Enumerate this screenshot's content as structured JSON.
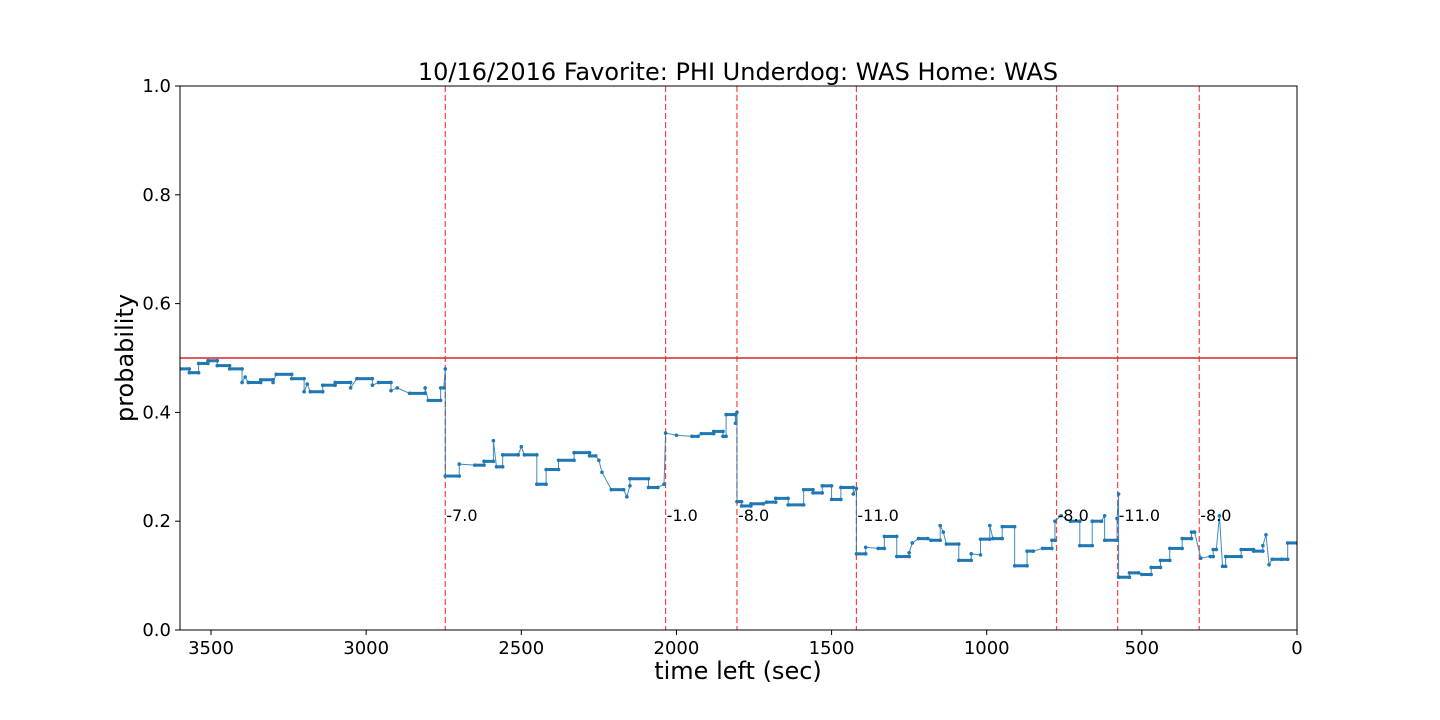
{
  "chart_data": {
    "type": "line",
    "title": "10/16/2016 Favorite: PHI Underdog: WAS Home: WAS",
    "xlabel": "time left (sec)",
    "ylabel": "probability",
    "xlim": [
      3600,
      0
    ],
    "ylim": [
      0,
      1.0
    ],
    "x_ticks": [
      3500,
      3000,
      2500,
      2000,
      1500,
      1000,
      500,
      0
    ],
    "y_ticks": [
      0.0,
      0.2,
      0.4,
      0.6,
      0.8,
      1.0
    ],
    "x_tick_labels": [
      "3500",
      "3000",
      "2500",
      "2000",
      "1500",
      "1000",
      "500",
      "0"
    ],
    "y_tick_labels": [
      "0.0",
      "0.2",
      "0.4",
      "0.6",
      "0.8",
      "1.0"
    ],
    "grid": false,
    "reference_line": {
      "y": 0.5,
      "color": "#d62728"
    },
    "series": [
      {
        "color": "#1f77b4",
        "points": [
          [
            3600,
            0.48
          ],
          [
            3570,
            0.48
          ],
          [
            3570,
            0.473
          ],
          [
            3540,
            0.473
          ],
          [
            3540,
            0.49
          ],
          [
            3510,
            0.49
          ],
          [
            3510,
            0.495
          ],
          [
            3480,
            0.495
          ],
          [
            3480,
            0.486
          ],
          [
            3440,
            0.486
          ],
          [
            3440,
            0.48
          ],
          [
            3400,
            0.48
          ],
          [
            3400,
            0.455
          ],
          [
            3390,
            0.465
          ],
          [
            3380,
            0.455
          ],
          [
            3340,
            0.455
          ],
          [
            3340,
            0.46
          ],
          [
            3300,
            0.46
          ],
          [
            3300,
            0.455
          ],
          [
            3290,
            0.47
          ],
          [
            3240,
            0.47
          ],
          [
            3240,
            0.462
          ],
          [
            3200,
            0.462
          ],
          [
            3200,
            0.438
          ],
          [
            3190,
            0.452
          ],
          [
            3180,
            0.438
          ],
          [
            3140,
            0.438
          ],
          [
            3140,
            0.45
          ],
          [
            3100,
            0.45
          ],
          [
            3100,
            0.455
          ],
          [
            3050,
            0.455
          ],
          [
            3050,
            0.445
          ],
          [
            3030,
            0.462
          ],
          [
            2980,
            0.462
          ],
          [
            2980,
            0.45
          ],
          [
            2960,
            0.455
          ],
          [
            2920,
            0.455
          ],
          [
            2920,
            0.44
          ],
          [
            2900,
            0.445
          ],
          [
            2860,
            0.435
          ],
          [
            2810,
            0.435
          ],
          [
            2810,
            0.445
          ],
          [
            2800,
            0.422
          ],
          [
            2760,
            0.422
          ],
          [
            2760,
            0.445
          ],
          [
            2750,
            0.445
          ],
          [
            2745,
            0.48
          ],
          [
            2745,
            0.283
          ],
          [
            2700,
            0.283
          ],
          [
            2700,
            0.305
          ],
          [
            2650,
            0.303
          ],
          [
            2620,
            0.303
          ],
          [
            2620,
            0.31
          ],
          [
            2590,
            0.31
          ],
          [
            2590,
            0.348
          ],
          [
            2580,
            0.3
          ],
          [
            2560,
            0.3
          ],
          [
            2560,
            0.322
          ],
          [
            2510,
            0.322
          ],
          [
            2500,
            0.337
          ],
          [
            2490,
            0.322
          ],
          [
            2450,
            0.322
          ],
          [
            2450,
            0.268
          ],
          [
            2420,
            0.268
          ],
          [
            2420,
            0.295
          ],
          [
            2380,
            0.295
          ],
          [
            2380,
            0.312
          ],
          [
            2330,
            0.312
          ],
          [
            2330,
            0.326
          ],
          [
            2280,
            0.326
          ],
          [
            2280,
            0.32
          ],
          [
            2260,
            0.32
          ],
          [
            2250,
            0.312
          ],
          [
            2240,
            0.29
          ],
          [
            2210,
            0.258
          ],
          [
            2170,
            0.258
          ],
          [
            2160,
            0.245
          ],
          [
            2150,
            0.265
          ],
          [
            2150,
            0.278
          ],
          [
            2090,
            0.278
          ],
          [
            2090,
            0.262
          ],
          [
            2060,
            0.262
          ],
          [
            2040,
            0.268
          ],
          [
            2035,
            0.362
          ],
          [
            2000,
            0.358
          ],
          [
            1950,
            0.356
          ],
          [
            1930,
            0.356
          ],
          [
            1920,
            0.361
          ],
          [
            1880,
            0.361
          ],
          [
            1880,
            0.365
          ],
          [
            1850,
            0.365
          ],
          [
            1850,
            0.356
          ],
          [
            1840,
            0.356
          ],
          [
            1840,
            0.396
          ],
          [
            1810,
            0.396
          ],
          [
            1810,
            0.38
          ],
          [
            1805,
            0.4
          ],
          [
            1805,
            0.236
          ],
          [
            1790,
            0.236
          ],
          [
            1790,
            0.228
          ],
          [
            1760,
            0.228
          ],
          [
            1760,
            0.232
          ],
          [
            1720,
            0.232
          ],
          [
            1710,
            0.235
          ],
          [
            1680,
            0.235
          ],
          [
            1680,
            0.242
          ],
          [
            1640,
            0.242
          ],
          [
            1640,
            0.23
          ],
          [
            1590,
            0.23
          ],
          [
            1590,
            0.258
          ],
          [
            1560,
            0.258
          ],
          [
            1560,
            0.252
          ],
          [
            1530,
            0.252
          ],
          [
            1530,
            0.265
          ],
          [
            1500,
            0.265
          ],
          [
            1500,
            0.24
          ],
          [
            1470,
            0.24
          ],
          [
            1470,
            0.262
          ],
          [
            1430,
            0.262
          ],
          [
            1430,
            0.25
          ],
          [
            1420,
            0.26
          ],
          [
            1420,
            0.14
          ],
          [
            1390,
            0.14
          ],
          [
            1390,
            0.152
          ],
          [
            1350,
            0.15
          ],
          [
            1330,
            0.15
          ],
          [
            1330,
            0.172
          ],
          [
            1290,
            0.172
          ],
          [
            1290,
            0.135
          ],
          [
            1250,
            0.135
          ],
          [
            1250,
            0.142
          ],
          [
            1240,
            0.16
          ],
          [
            1220,
            0.168
          ],
          [
            1190,
            0.168
          ],
          [
            1180,
            0.165
          ],
          [
            1150,
            0.165
          ],
          [
            1150,
            0.192
          ],
          [
            1140,
            0.18
          ],
          [
            1130,
            0.158
          ],
          [
            1090,
            0.158
          ],
          [
            1090,
            0.128
          ],
          [
            1050,
            0.128
          ],
          [
            1050,
            0.14
          ],
          [
            1020,
            0.138
          ],
          [
            1020,
            0.167
          ],
          [
            990,
            0.167
          ],
          [
            990,
            0.192
          ],
          [
            980,
            0.168
          ],
          [
            950,
            0.168
          ],
          [
            950,
            0.19
          ],
          [
            910,
            0.19
          ],
          [
            910,
            0.118
          ],
          [
            870,
            0.118
          ],
          [
            870,
            0.145
          ],
          [
            850,
            0.145
          ],
          [
            820,
            0.15
          ],
          [
            790,
            0.15
          ],
          [
            790,
            0.165
          ],
          [
            780,
            0.165
          ],
          [
            780,
            0.2
          ],
          [
            760,
            0.21
          ],
          [
            730,
            0.2
          ],
          [
            700,
            0.2
          ],
          [
            700,
            0.155
          ],
          [
            660,
            0.155
          ],
          [
            660,
            0.2
          ],
          [
            630,
            0.2
          ],
          [
            620,
            0.21
          ],
          [
            620,
            0.165
          ],
          [
            580,
            0.165
          ],
          [
            580,
            0.205
          ],
          [
            575,
            0.25
          ],
          [
            575,
            0.097
          ],
          [
            540,
            0.097
          ],
          [
            540,
            0.105
          ],
          [
            510,
            0.105
          ],
          [
            500,
            0.102
          ],
          [
            470,
            0.102
          ],
          [
            470,
            0.115
          ],
          [
            440,
            0.115
          ],
          [
            440,
            0.128
          ],
          [
            410,
            0.128
          ],
          [
            410,
            0.15
          ],
          [
            370,
            0.15
          ],
          [
            370,
            0.168
          ],
          [
            340,
            0.168
          ],
          [
            340,
            0.18
          ],
          [
            330,
            0.18
          ],
          [
            310,
            0.132
          ],
          [
            280,
            0.135
          ],
          [
            270,
            0.135
          ],
          [
            270,
            0.148
          ],
          [
            260,
            0.148
          ],
          [
            250,
            0.21
          ],
          [
            240,
            0.117
          ],
          [
            230,
            0.117
          ],
          [
            230,
            0.135
          ],
          [
            180,
            0.135
          ],
          [
            180,
            0.148
          ],
          [
            140,
            0.148
          ],
          [
            140,
            0.145
          ],
          [
            110,
            0.145
          ],
          [
            110,
            0.155
          ],
          [
            100,
            0.175
          ],
          [
            90,
            0.12
          ],
          [
            80,
            0.13
          ],
          [
            50,
            0.13
          ],
          [
            50,
            0.13
          ],
          [
            30,
            0.13
          ],
          [
            30,
            0.16
          ],
          [
            0,
            0.16
          ]
        ]
      }
    ],
    "events": [
      {
        "x": 2745,
        "label": "-7.0"
      },
      {
        "x": 2035,
        "label": "-1.0"
      },
      {
        "x": 1805,
        "label": "-8.0"
      },
      {
        "x": 1420,
        "label": "-11.0"
      },
      {
        "x": 775,
        "label": "-8.0"
      },
      {
        "x": 578,
        "label": "-11.0"
      },
      {
        "x": 315,
        "label": "-8.0"
      }
    ],
    "event_line_color": "#ff0000",
    "event_label_y": 0.2
  }
}
